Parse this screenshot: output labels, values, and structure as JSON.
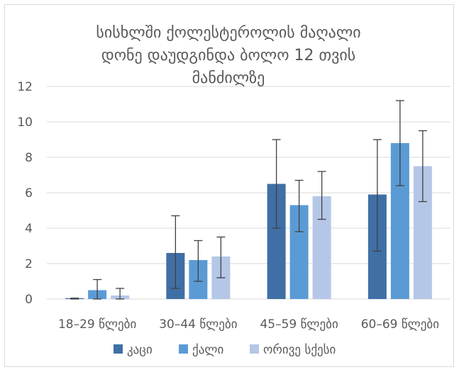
{
  "chart_data": {
    "type": "bar",
    "title_lines": [
      "სისხლში ქოლესტეროლის მაღალი",
      "დონე დაუდგინდა ბოლო 12 თვის",
      "მანძილზე"
    ],
    "categories": [
      "18–29 წლები",
      "30–44 წლები",
      "45–59 წლები",
      "60–69 წლები"
    ],
    "series": [
      {
        "name": "კაცი",
        "color": "#3f6fa5",
        "values": [
          0.05,
          2.6,
          6.5,
          5.9
        ],
        "err_low": [
          0.0,
          0.6,
          4.0,
          2.7
        ],
        "err_high": [
          0.05,
          4.7,
          9.0,
          9.0
        ]
      },
      {
        "name": "ქალი",
        "color": "#5b9bd5",
        "values": [
          0.5,
          2.2,
          5.3,
          8.8
        ],
        "err_low": [
          0.0,
          1.0,
          3.8,
          6.4
        ],
        "err_high": [
          1.1,
          3.3,
          6.7,
          11.2
        ]
      },
      {
        "name": "ორივე სქესი",
        "color": "#b4c7e7",
        "values": [
          0.2,
          2.4,
          5.8,
          7.5
        ],
        "err_low": [
          0.0,
          1.2,
          4.5,
          5.5
        ],
        "err_high": [
          0.6,
          3.5,
          7.2,
          9.5
        ]
      }
    ],
    "ylim": [
      0,
      12
    ],
    "yticks": [
      0,
      2,
      4,
      6,
      8,
      10,
      12
    ],
    "grid": true,
    "legend_position": "bottom"
  }
}
